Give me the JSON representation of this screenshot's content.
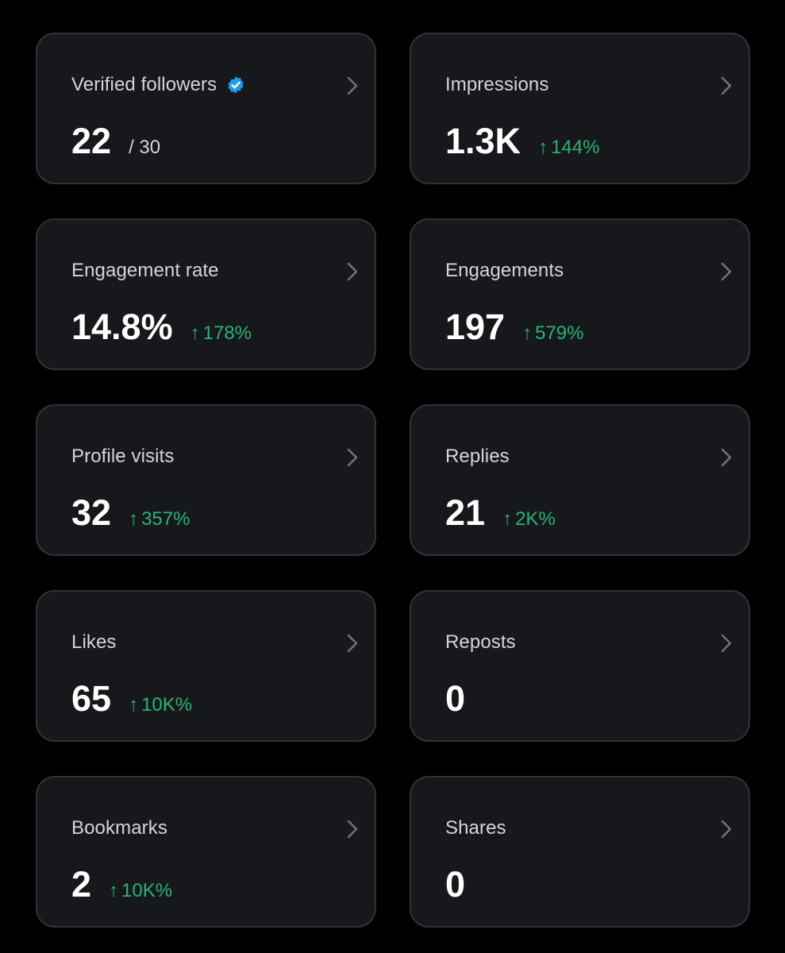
{
  "cards": [
    {
      "label": "Verified followers",
      "value": "22",
      "denominator": "/ 30",
      "verified": true
    },
    {
      "label": "Impressions",
      "value": "1.3K",
      "change": "144%"
    },
    {
      "label": "Engagement rate",
      "value": "14.8%",
      "change": "178%"
    },
    {
      "label": "Engagements",
      "value": "197",
      "change": "579%"
    },
    {
      "label": "Profile visits",
      "value": "32",
      "change": "357%"
    },
    {
      "label": "Replies",
      "value": "21",
      "change": "2K%"
    },
    {
      "label": "Likes",
      "value": "65",
      "change": "10K%"
    },
    {
      "label": "Reposts",
      "value": "0"
    },
    {
      "label": "Bookmarks",
      "value": "2",
      "change": "10K%"
    },
    {
      "label": "Shares",
      "value": "0"
    }
  ],
  "icons": {
    "arrow": "↑",
    "chevron": "chevron-right-icon",
    "verified": "verified-badge-icon"
  },
  "colors": {
    "background": "#000000",
    "card": "#17181c",
    "card_border": "#2f3336",
    "label": "#d3d5d9",
    "value": "#ffffff",
    "positive_change": "#22b574",
    "verified_blue": "#1d9bf0",
    "chevron": "#71767b"
  }
}
